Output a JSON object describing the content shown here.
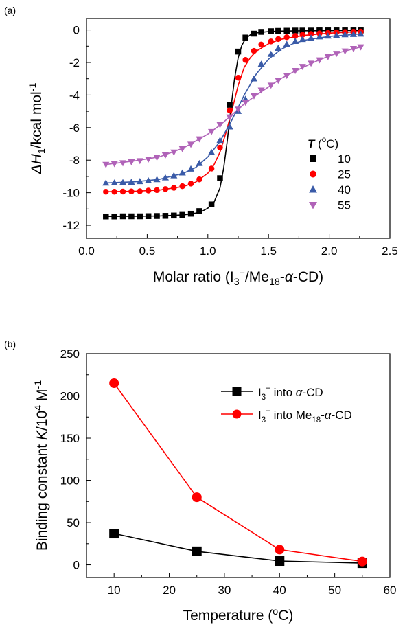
{
  "chart_data": [
    {
      "panel": "(a)",
      "type": "scatter",
      "xlabel_parts": [
        "Molar ratio (I",
        "3",
        "−",
        "/Me",
        "18",
        "-",
        "α",
        "-CD)"
      ],
      "ylabel_parts": [
        "ΔH",
        "1",
        "/kcal mol",
        "-1"
      ],
      "xlim": [
        0.0,
        2.5
      ],
      "ylim": [
        -12.8,
        0.7
      ],
      "xticks": [
        "0.0",
        "0.5",
        "1.0",
        "1.5",
        "2.0",
        "2.5"
      ],
      "yticks": [
        "0",
        "-2",
        "-4",
        "-6",
        "-8",
        "-10",
        "-12"
      ],
      "legend_title": "T (°C)",
      "legend_title_parts": [
        "T",
        " (",
        "o",
        "C)"
      ],
      "legend_position": "center-right",
      "series": [
        {
          "name": "10",
          "marker": "square",
          "color": "#000000",
          "x": [
            0.16,
            0.23,
            0.3,
            0.37,
            0.44,
            0.51,
            0.58,
            0.65,
            0.72,
            0.79,
            0.86,
            0.93,
            1.03,
            1.1,
            1.18,
            1.25,
            1.31,
            1.38,
            1.44,
            1.52,
            1.58,
            1.65,
            1.72,
            1.78,
            1.85,
            1.92,
            1.99,
            2.06,
            2.13,
            2.2,
            2.26
          ],
          "y": [
            -11.46,
            -11.46,
            -11.45,
            -11.45,
            -11.45,
            -11.44,
            -11.43,
            -11.42,
            -11.4,
            -11.36,
            -11.29,
            -11.13,
            -10.72,
            -9.11,
            -4.6,
            -1.33,
            -0.47,
            -0.23,
            -0.12,
            -0.08,
            -0.06,
            -0.05,
            -0.04,
            -0.04,
            -0.04,
            -0.03,
            -0.03,
            -0.03,
            -0.03,
            -0.03,
            -0.03
          ],
          "fit_x": [
            0.16,
            0.4,
            0.6,
            0.8,
            0.9,
            0.95,
            1.0,
            1.05,
            1.1,
            1.13,
            1.16,
            1.19,
            1.22,
            1.25,
            1.28,
            1.31,
            1.35,
            1.4,
            1.5,
            1.6,
            1.8,
            2.26
          ],
          "fit_y": [
            -11.46,
            -11.45,
            -11.43,
            -11.36,
            -11.25,
            -11.15,
            -10.95,
            -10.6,
            -9.7,
            -8.5,
            -6.8,
            -4.8,
            -3.0,
            -1.7,
            -0.95,
            -0.55,
            -0.3,
            -0.18,
            -0.1,
            -0.07,
            -0.05,
            -0.03
          ]
        },
        {
          "name": "25",
          "marker": "circle",
          "color": "#ff0000",
          "x": [
            0.16,
            0.23,
            0.3,
            0.37,
            0.44,
            0.51,
            0.58,
            0.65,
            0.72,
            0.79,
            0.86,
            0.93,
            1.03,
            1.1,
            1.18,
            1.25,
            1.31,
            1.38,
            1.44,
            1.52,
            1.58,
            1.65,
            1.72,
            1.78,
            1.85,
            1.92,
            1.99,
            2.06,
            2.13,
            2.2,
            2.26
          ],
          "y": [
            -9.94,
            -9.94,
            -9.93,
            -9.92,
            -9.91,
            -9.87,
            -9.84,
            -9.78,
            -9.7,
            -9.6,
            -9.44,
            -9.18,
            -8.52,
            -7.23,
            -4.95,
            -2.94,
            -1.84,
            -1.29,
            -0.9,
            -0.71,
            -0.56,
            -0.45,
            -0.37,
            -0.3,
            -0.25,
            -0.21,
            -0.18,
            -0.15,
            -0.13,
            -0.11,
            -0.1
          ],
          "fit_x": [
            0.16,
            0.4,
            0.6,
            0.8,
            0.9,
            1.0,
            1.05,
            1.1,
            1.15,
            1.2,
            1.25,
            1.3,
            1.35,
            1.4,
            1.5,
            1.6,
            1.8,
            2.0,
            2.26
          ],
          "fit_y": [
            -9.94,
            -9.91,
            -9.84,
            -9.62,
            -9.35,
            -8.8,
            -8.3,
            -7.5,
            -6.3,
            -4.9,
            -3.4,
            -2.3,
            -1.7,
            -1.3,
            -0.85,
            -0.58,
            -0.33,
            -0.2,
            -0.1
          ]
        },
        {
          "name": "40",
          "marker": "triangle-up",
          "color": "#3a5ba8",
          "x": [
            0.16,
            0.23,
            0.3,
            0.37,
            0.44,
            0.51,
            0.58,
            0.65,
            0.72,
            0.79,
            0.86,
            0.93,
            1.03,
            1.1,
            1.18,
            1.25,
            1.31,
            1.38,
            1.44,
            1.52,
            1.58,
            1.65,
            1.72,
            1.78,
            1.85,
            1.92,
            1.99,
            2.06,
            2.13,
            2.2,
            2.26
          ],
          "y": [
            -9.4,
            -9.39,
            -9.37,
            -9.35,
            -9.31,
            -9.26,
            -9.19,
            -9.08,
            -8.95,
            -8.78,
            -8.54,
            -8.2,
            -7.52,
            -6.78,
            -5.95,
            -5.0,
            -4.25,
            -3.0,
            -2.1,
            -1.49,
            -1.12,
            -0.88,
            -0.7,
            -0.58,
            -0.49,
            -0.42,
            -0.37,
            -0.33,
            -0.29,
            -0.27,
            -0.25
          ],
          "fit_x": [
            0.16,
            0.4,
            0.6,
            0.8,
            0.9,
            1.0,
            1.1,
            1.2,
            1.3,
            1.4,
            1.5,
            1.6,
            1.7,
            1.8,
            2.0,
            2.26
          ],
          "fit_y": [
            -9.4,
            -9.33,
            -9.18,
            -8.8,
            -8.45,
            -7.8,
            -6.85,
            -5.5,
            -4.0,
            -2.7,
            -1.8,
            -1.2,
            -0.85,
            -0.63,
            -0.4,
            -0.25
          ]
        },
        {
          "name": "55",
          "marker": "triangle-down",
          "color": "#b063b8",
          "x": [
            0.16,
            0.23,
            0.3,
            0.37,
            0.44,
            0.51,
            0.58,
            0.65,
            0.72,
            0.79,
            0.86,
            0.93,
            1.03,
            1.1,
            1.18,
            1.25,
            1.31,
            1.38,
            1.44,
            1.52,
            1.58,
            1.65,
            1.72,
            1.78,
            1.85,
            1.92,
            1.99,
            2.06,
            2.13,
            2.2,
            2.26
          ],
          "y": [
            -8.27,
            -8.22,
            -8.17,
            -8.11,
            -8.04,
            -7.94,
            -7.83,
            -7.69,
            -7.51,
            -7.3,
            -7.03,
            -6.7,
            -6.25,
            -5.82,
            -5.35,
            -4.87,
            -4.45,
            -4.05,
            -3.7,
            -3.4,
            -3.1,
            -2.8,
            -2.5,
            -2.25,
            -2.05,
            -1.85,
            -1.65,
            -1.45,
            -1.3,
            -1.15,
            -1.05
          ],
          "fit_x": [
            0.16,
            0.4,
            0.6,
            0.8,
            1.0,
            1.1,
            1.2,
            1.3,
            1.4,
            1.5,
            1.6,
            1.7,
            1.8,
            1.9,
            2.0,
            2.1,
            2.26
          ],
          "fit_y": [
            -8.27,
            -8.04,
            -7.8,
            -7.25,
            -6.4,
            -5.85,
            -5.2,
            -4.55,
            -4.0,
            -3.5,
            -3.0,
            -2.6,
            -2.25,
            -1.9,
            -1.6,
            -1.35,
            -1.05
          ]
        }
      ]
    },
    {
      "panel": "(b)",
      "type": "line",
      "xlabel_parts": [
        "Temperature (",
        "o",
        "C)"
      ],
      "ylabel_parts": [
        "Binding constant ",
        "K",
        "/10",
        "4",
        " M",
        "-1"
      ],
      "xlim": [
        5,
        60
      ],
      "ylim": [
        -15,
        250
      ],
      "xticks": [
        "10",
        "20",
        "30",
        "40",
        "50",
        "60"
      ],
      "yticks": [
        "0",
        "50",
        "100",
        "150",
        "200",
        "250"
      ],
      "legend_position": "top-right",
      "series": [
        {
          "name": "I3− into α-CD",
          "marker": "square",
          "color": "#000000",
          "x": [
            10,
            25,
            40,
            55
          ],
          "y": [
            37,
            16,
            4.5,
            2
          ],
          "label_parts": [
            "I",
            "3",
            "−",
            " into ",
            "α",
            "-CD"
          ]
        },
        {
          "name": "I3− into Me18-α-CD",
          "marker": "circle",
          "color": "#ff0000",
          "x": [
            10,
            25,
            40,
            55
          ],
          "y": [
            215,
            80,
            18,
            4
          ],
          "label_parts": [
            "I",
            "3",
            "−",
            " into Me",
            "18",
            "-",
            "α",
            "-CD"
          ]
        }
      ]
    }
  ]
}
